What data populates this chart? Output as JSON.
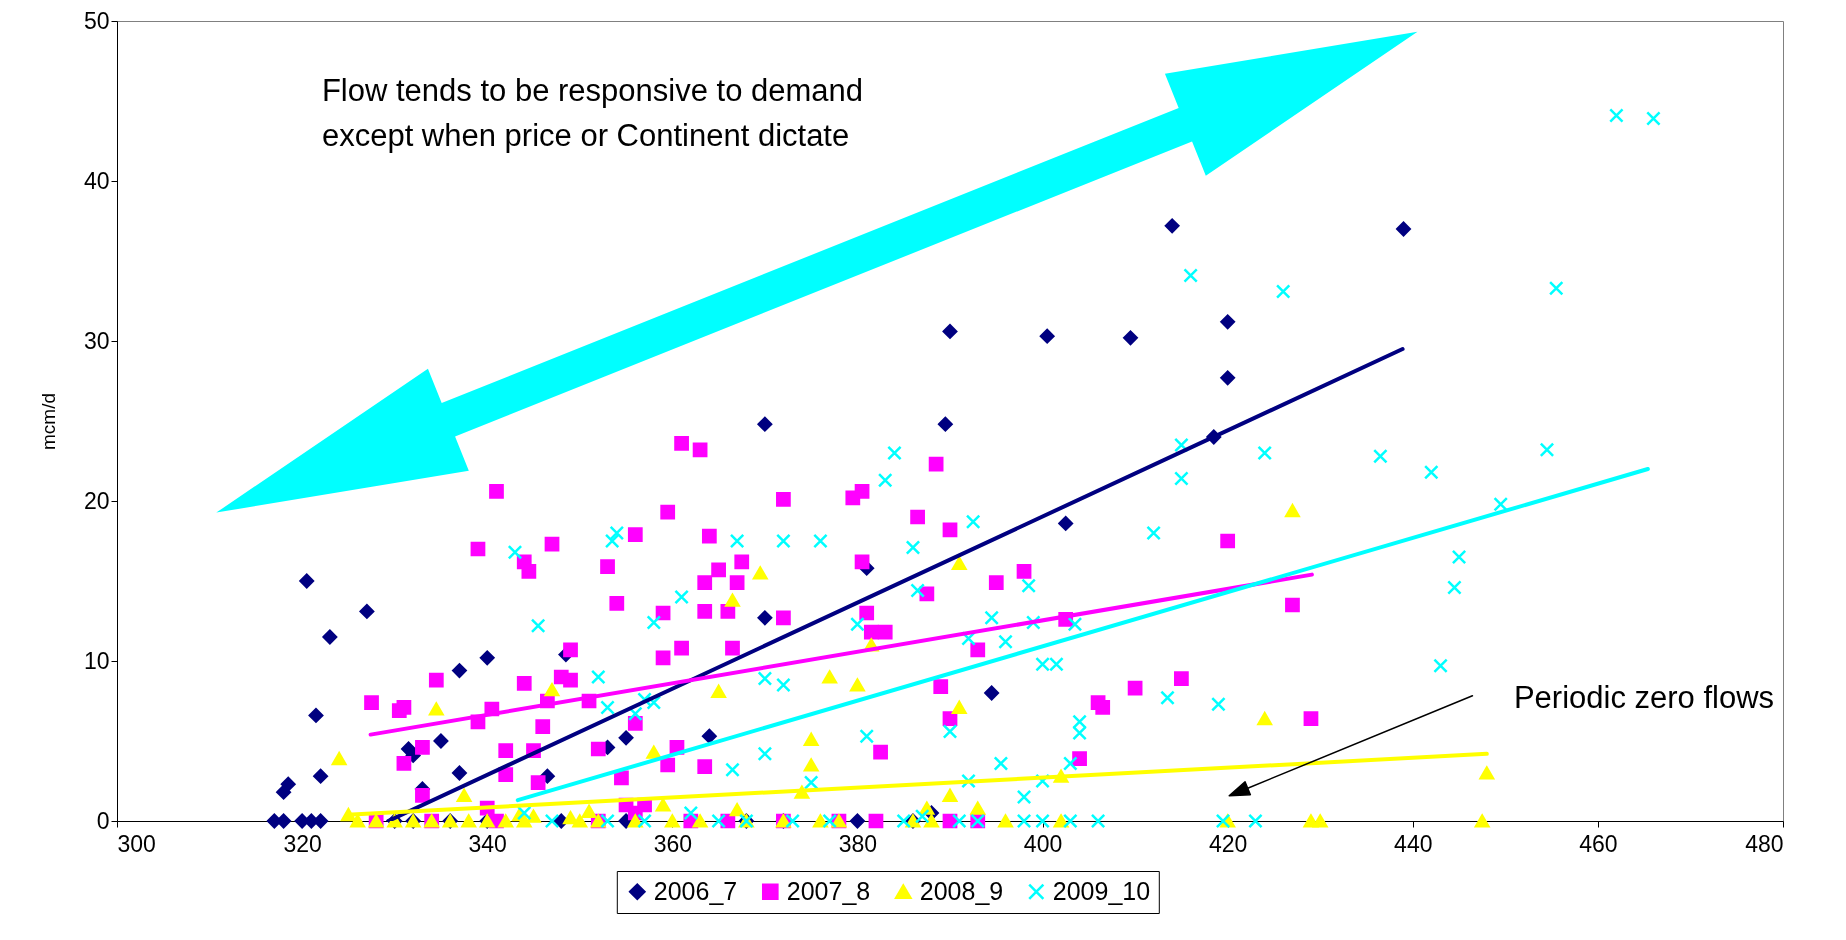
{
  "chart_data": {
    "type": "scatter",
    "ylabel": "mcm/d",
    "xlim": [
      300,
      480
    ],
    "xticks": [
      300,
      320,
      340,
      360,
      380,
      400,
      420,
      440,
      460,
      480
    ],
    "ylim": [
      0,
      50
    ],
    "yticks": [
      0,
      10,
      20,
      30,
      40,
      50
    ],
    "legend": "bottom",
    "annotations": [
      "Flow tends to be responsive to demand\nexcept when price or Continent dictate",
      "Periodic zero flows"
    ],
    "series": [
      {
        "name": "2006_7",
        "color": "#000080",
        "marker": "diamond",
        "x": [
          414,
          439,
          390,
          400.5,
          409.5,
          420,
          420,
          418.5,
          402.5,
          389.5,
          370,
          381,
          370,
          394.5,
          320.5,
          327,
          323,
          340,
          337,
          348.5,
          321.5,
          335,
          332,
          331.5,
          364,
          353,
          355,
          318.5,
          318,
          322,
          333,
          346.5,
          337,
          388,
          317,
          318,
          320,
          321,
          322,
          330,
          332,
          336,
          340,
          348,
          355,
          368,
          372,
          380,
          386
        ],
        "values": [
          37.2,
          37,
          30.6,
          30.3,
          30.2,
          31.2,
          27.7,
          24,
          18.6,
          24.8,
          24.8,
          15.8,
          12.7,
          8,
          15,
          13.1,
          11.5,
          10.2,
          9.4,
          10.4,
          6.6,
          5,
          4.1,
          4.5,
          5.3,
          4.6,
          5.2,
          2.3,
          1.8,
          2.8,
          2,
          2.8,
          3,
          0.5,
          0,
          0,
          0,
          0,
          0,
          0,
          0,
          0,
          0,
          0,
          0,
          0,
          0,
          0,
          0
        ]
      },
      {
        "name": "2007_8",
        "color": "#ff00ff",
        "marker": "square",
        "x": [
          361,
          363,
          341,
          388.5,
          380.5,
          379.5,
          372,
          359.5,
          386.5,
          390,
          364,
          356,
          339,
          347,
          344,
          344.5,
          367.5,
          363.5,
          365,
          367,
          353,
          354,
          380.5,
          398,
          395,
          387.5,
          359,
          363.5,
          366,
          381,
          372,
          381.5,
          383,
          393,
          402.5,
          349,
          361,
          359,
          366.5,
          334.5,
          344,
          348,
          349,
          331,
          327.5,
          330.5,
          340.5,
          339,
          346.5,
          351,
          346,
          356,
          352,
          360.5,
          333,
          342,
          345,
          382.5,
          390,
          389,
          410,
          415,
          406,
          406.5,
          404,
          420,
          427,
          429,
          331,
          342,
          345.5,
          354.5,
          363.5,
          359.5,
          340,
          355,
          356,
          357,
          333,
          328,
          334,
          341,
          352,
          362,
          366,
          372,
          378,
          382,
          390,
          393
        ],
        "values": [
          23.6,
          23.2,
          20.6,
          22.3,
          20.6,
          20.2,
          20.1,
          19.3,
          19,
          18.2,
          17.8,
          17.9,
          17,
          17.3,
          16.2,
          15.6,
          16.2,
          14.9,
          15.7,
          14.9,
          15.9,
          13.6,
          16.2,
          15.6,
          14.9,
          14.2,
          13,
          13.1,
          13.1,
          13,
          12.7,
          11.8,
          11.8,
          10.7,
          12.6,
          10.7,
          10.8,
          10.2,
          10.8,
          8.8,
          8.6,
          9,
          8.8,
          7.1,
          7.4,
          6.9,
          7,
          6.2,
          7.5,
          7.5,
          5.9,
          6.1,
          4.5,
          4.6,
          4.6,
          4.4,
          4.4,
          4.3,
          6.4,
          8.4,
          8.3,
          8.9,
          7.4,
          7.1,
          3.9,
          17.5,
          13.5,
          6.4,
          3.6,
          2.9,
          2.4,
          2.7,
          3.4,
          3.5,
          0.8,
          1,
          0.5,
          1,
          1.6,
          0,
          0,
          0,
          0,
          0,
          0,
          0,
          0,
          0,
          0,
          0
        ]
      },
      {
        "name": "2008_9",
        "color": "#ffff00",
        "marker": "triangle",
        "x": [
          427,
          391,
          369.5,
          366.5,
          381.5,
          377,
          380,
          365,
          347,
          334.5,
          391,
          424,
          448,
          324,
          375,
          375,
          374,
          387.5,
          390,
          393,
          402,
          358,
          359,
          367,
          351,
          337.5,
          343.5,
          325,
          345,
          349,
          326,
          328,
          330,
          332,
          334,
          336,
          338,
          340,
          342,
          344,
          350,
          352,
          356,
          360,
          363,
          368,
          372,
          376,
          378,
          386,
          388,
          396,
          402,
          420,
          429,
          430,
          447.5
        ],
        "values": [
          19.4,
          16.1,
          15.5,
          13.8,
          11,
          9,
          8.5,
          8.1,
          8.2,
          7,
          7.1,
          6.4,
          3,
          3.9,
          5.1,
          3.5,
          1.8,
          0.8,
          1.6,
          0.8,
          2.8,
          4.3,
          1,
          0.7,
          0.6,
          1.6,
          0.4,
          0.4,
          0.3,
          0.2,
          0,
          0,
          0,
          0,
          0,
          0,
          0,
          0,
          0,
          0,
          0,
          0,
          0,
          0,
          0,
          0,
          0,
          0,
          0,
          0,
          0,
          0,
          0,
          0,
          0,
          0,
          0
        ]
      },
      {
        "name": "2009_10",
        "color": "#00ffff",
        "marker": "cross",
        "x": [
          462,
          466,
          416,
          426,
          455.5,
          384,
          415,
          424,
          436.5,
          442,
          454.5,
          415,
          383,
          412,
          392.5,
          449.5,
          367,
          372,
          376,
          353.5,
          354,
          343,
          386,
          386.5,
          394.5,
          398.5,
          445,
          444.5,
          345.5,
          358,
          361,
          370,
          372,
          399,
          403.5,
          396,
          380,
          392,
          352,
          358,
          356,
          353,
          357,
          400,
          401.5,
          413.5,
          419,
          443,
          366.5,
          370,
          381,
          390,
          404,
          404,
          392,
          395.5,
          400,
          403,
          398,
          375,
          362,
          344,
          387,
          347,
          353,
          357,
          365,
          368,
          373,
          377,
          385,
          391,
          393,
          398,
          400,
          403,
          406,
          419.5,
          423
        ],
        "values": [
          44.1,
          43.9,
          34.1,
          33.1,
          33.3,
          23,
          23.5,
          23,
          22.8,
          21.8,
          23.2,
          21.4,
          21.3,
          18,
          18.7,
          19.8,
          17.5,
          17.5,
          17.5,
          17.5,
          18,
          16.8,
          17.1,
          14.4,
          12.7,
          14.7,
          16.5,
          14.6,
          12.2,
          12.4,
          14,
          8.9,
          8.5,
          12.4,
          12.3,
          11.2,
          12.3,
          11.4,
          9,
          7.4,
          6.7,
          7.1,
          7.6,
          9.8,
          9.8,
          7.7,
          7.3,
          9.7,
          3.2,
          4.2,
          5.3,
          5.6,
          6.2,
          5.5,
          2.5,
          3.6,
          2.5,
          3.6,
          1.5,
          2.4,
          0.5,
          0.5,
          0.3,
          0,
          0,
          0,
          0,
          0,
          0,
          0,
          0,
          0,
          0,
          0,
          0,
          0,
          0,
          0,
          0
        ]
      },
      {
        "type": "line",
        "color": "#000080",
        "line_style": "solid",
        "x": [
          329.3,
          438.9
        ],
        "values": [
          0,
          29.5
        ]
      },
      {
        "type": "line",
        "color": "#ff00ff",
        "line_style": "solid",
        "x": [
          327.4,
          429.1
        ],
        "values": [
          5.4,
          15.4
        ]
      },
      {
        "type": "line",
        "color": "#ffff00",
        "line_style": "solid",
        "x": [
          325.4,
          448
        ],
        "values": [
          0.4,
          4.2
        ]
      },
      {
        "type": "line",
        "color": "#00ffff",
        "line_style": "solid",
        "x": [
          343.3,
          465.4
        ],
        "values": [
          1.3,
          22
        ]
      }
    ]
  }
}
